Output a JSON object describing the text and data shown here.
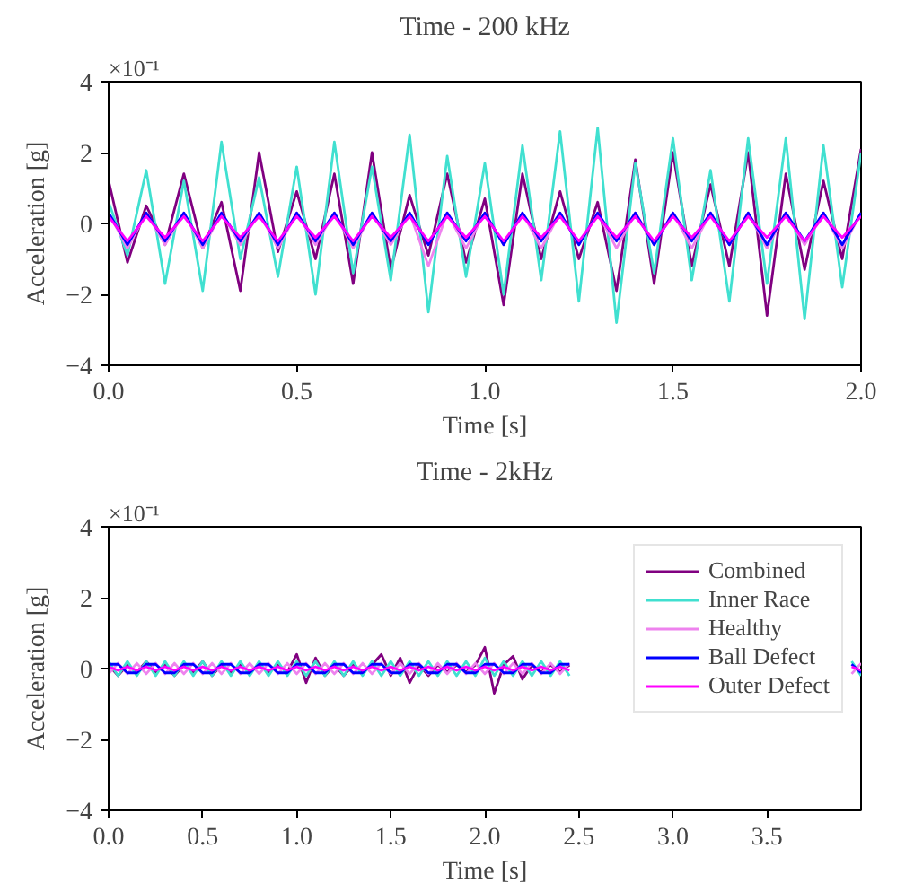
{
  "chart_data": [
    {
      "type": "line",
      "title": "Time - 200 kHz",
      "xlabel": "Time [s]",
      "ylabel": "Acceleration [g]",
      "annotations": [
        "×10⁻¹"
      ],
      "xlim": [
        0,
        2.0
      ],
      "xticks": [
        {
          "value": 0,
          "label": "0.0"
        },
        0.5,
        {
          "value": 1,
          "label": "1.0"
        },
        1.5,
        {
          "value": 2,
          "label": "2.0"
        }
      ],
      "ylim": [
        -4,
        4
      ],
      "yticks": [
        -4,
        -2,
        0,
        2,
        4
      ],
      "grid": false,
      "legend": false,
      "line_style": "solid",
      "x": [
        0.0,
        0.05,
        0.1,
        0.15,
        0.2,
        0.25,
        0.3,
        0.35,
        0.4,
        0.45,
        0.5,
        0.55,
        0.6,
        0.65,
        0.7,
        0.75,
        0.8,
        0.85,
        0.9,
        0.95,
        1.0,
        1.05,
        1.1,
        1.15,
        1.2,
        1.25,
        1.3,
        1.35,
        1.4,
        1.45,
        1.5,
        1.55,
        1.6,
        1.65,
        1.7,
        1.75,
        1.8,
        1.85,
        1.9,
        1.95,
        2.0
      ],
      "series": [
        {
          "color": "#800080",
          "values": [
            1.2,
            -1.1,
            0.5,
            -0.6,
            1.4,
            -0.7,
            0.6,
            -1.9,
            2.0,
            -0.8,
            0.9,
            -1.0,
            1.4,
            -1.7,
            2.0,
            -1.3,
            0.8,
            -0.9,
            1.4,
            -1.1,
            0.7,
            -2.3,
            1.4,
            -1.0,
            0.9,
            -1.0,
            0.6,
            -1.9,
            1.8,
            -1.7,
            2.0,
            -1.2,
            1.1,
            -1.2,
            2.0,
            -2.6,
            1.4,
            -1.3,
            1.2,
            -1.0,
            2.1
          ]
        },
        {
          "color": "#40e0d0",
          "values": [
            0.6,
            -0.9,
            1.5,
            -1.7,
            1.2,
            -1.9,
            2.3,
            -1.0,
            1.3,
            -1.5,
            1.6,
            -2.0,
            2.3,
            -1.4,
            1.6,
            -1.6,
            2.5,
            -2.5,
            1.9,
            -1.5,
            1.7,
            -2.0,
            2.2,
            -1.6,
            2.6,
            -2.2,
            2.7,
            -2.8,
            1.7,
            -1.4,
            2.4,
            -1.6,
            1.5,
            -2.2,
            2.4,
            -1.7,
            2.4,
            -2.7,
            2.2,
            -1.8,
            2.0
          ]
        },
        {
          "color": "#ee82ee",
          "values": [
            0.3,
            -0.7,
            0.3,
            -0.6,
            0.3,
            -0.7,
            0.3,
            -0.6,
            0.3,
            -0.7,
            0.3,
            -0.6,
            0.3,
            -0.7,
            0.3,
            -0.6,
            0.3,
            -1.2,
            0.3,
            -0.7,
            0.3,
            -0.6,
            0.3,
            -0.7,
            0.3,
            -0.6,
            0.3,
            -0.7,
            0.3,
            -0.6,
            0.3,
            -0.7,
            0.3,
            -0.6,
            0.3,
            -0.7,
            0.3,
            -0.6,
            0.3,
            -0.7,
            0.3
          ]
        },
        {
          "color": "#0000ff",
          "values": [
            0.3,
            -0.6,
            0.3,
            -0.5,
            0.3,
            -0.6,
            0.3,
            -0.5,
            0.3,
            -0.6,
            0.3,
            -0.5,
            0.3,
            -0.6,
            0.3,
            -0.5,
            0.3,
            -0.6,
            0.3,
            -0.5,
            0.3,
            -0.6,
            0.3,
            -0.5,
            0.3,
            -0.6,
            0.3,
            -0.5,
            0.3,
            -0.6,
            0.3,
            -0.5,
            0.3,
            -0.6,
            0.3,
            -0.6,
            0.3,
            -0.5,
            0.3,
            -0.6,
            0.3
          ]
        },
        {
          "color": "#ff00ff",
          "values": [
            0.2,
            -0.5,
            0.2,
            -0.4,
            0.2,
            -0.5,
            0.2,
            -0.4,
            0.2,
            -0.5,
            0.2,
            -0.4,
            0.2,
            -0.5,
            0.2,
            -0.4,
            0.2,
            -0.5,
            0.2,
            -0.4,
            0.2,
            -0.5,
            0.2,
            -0.4,
            0.2,
            -0.5,
            0.2,
            -0.4,
            0.2,
            -0.5,
            0.2,
            -0.4,
            0.2,
            -0.5,
            0.2,
            -0.4,
            0.2,
            -0.5,
            0.2,
            -0.4,
            0.2
          ]
        }
      ]
    },
    {
      "type": "line",
      "title": "Time - 2kHz",
      "xlabel": "Time [s]",
      "ylabel": "Acceleration [g]",
      "annotations": [
        "×10⁻¹"
      ],
      "xlim": [
        0,
        4.0
      ],
      "xticks": [
        {
          "value": 0,
          "label": "0.0"
        },
        0.5,
        {
          "value": 1,
          "label": "1.0"
        },
        1.5,
        {
          "value": 2,
          "label": "2.0"
        },
        2.5,
        {
          "value": 3,
          "label": "3.0"
        },
        3.5
      ],
      "ylim": [
        -4,
        4
      ],
      "yticks": [
        -4,
        -2,
        0,
        2,
        4
      ],
      "grid": false,
      "legend": "top right",
      "line_style": "solid",
      "x": [
        0.0,
        0.05,
        0.1,
        0.15,
        0.2,
        0.25,
        0.3,
        0.35,
        0.4,
        0.45,
        0.5,
        0.55,
        0.6,
        0.65,
        0.7,
        0.75,
        0.8,
        0.85,
        0.9,
        0.95,
        1.0,
        1.05,
        1.1,
        1.15,
        1.2,
        1.25,
        1.3,
        1.35,
        1.4,
        1.45,
        1.5,
        1.55,
        1.6,
        1.65,
        1.7,
        1.75,
        1.8,
        1.85,
        1.9,
        1.95,
        2.0,
        2.05,
        2.1,
        2.15,
        2.2,
        2.25,
        2.3,
        2.35,
        2.4,
        2.45,
        2.5,
        3.95,
        4.0
      ],
      "series": [
        {
          "name": "Combined",
          "color": "#800080",
          "values": [
            0.1,
            -0.2,
            0.1,
            -0.1,
            0.2,
            -0.1,
            0.1,
            -0.2,
            0.1,
            -0.1,
            0.2,
            -0.2,
            0.1,
            -0.1,
            0.1,
            -0.1,
            0.1,
            -0.1,
            0.1,
            -0.1,
            0.4,
            -0.4,
            0.3,
            -0.2,
            0.1,
            -0.2,
            0.1,
            -0.1,
            0.1,
            0.4,
            -0.2,
            0.3,
            -0.4,
            0.1,
            -0.2,
            0.1,
            -0.1,
            0.1,
            -0.1,
            0.1,
            0.6,
            -0.7,
            0.1,
            0.35,
            -0.3,
            0.1,
            -0.1,
            0.1,
            -0.1,
            0.1,
            null,
            null,
            null
          ]
        },
        {
          "name": "Inner Race",
          "color": "#40e0d0",
          "values": [
            0.2,
            -0.2,
            0.2,
            -0.2,
            0.2,
            -0.2,
            0.2,
            -0.2,
            0.2,
            -0.2,
            0.2,
            -0.2,
            0.2,
            -0.2,
            0.2,
            -0.2,
            0.2,
            -0.2,
            0.2,
            -0.2,
            0.2,
            -0.2,
            0.2,
            -0.2,
            0.2,
            -0.2,
            0.2,
            -0.2,
            0.2,
            -0.2,
            0.2,
            -0.2,
            0.2,
            -0.2,
            0.2,
            -0.2,
            0.2,
            -0.2,
            0.2,
            -0.2,
            0.3,
            -0.2,
            0.2,
            -0.2,
            0.2,
            -0.2,
            0.2,
            -0.2,
            0.2,
            -0.2,
            null,
            0.2,
            -0.2
          ]
        },
        {
          "name": "Healthy",
          "color": "#ee82ee",
          "values": [
            -0.15,
            0.15,
            -0.15,
            0.15,
            -0.15,
            0.15,
            -0.15,
            0.15,
            -0.15,
            0.15,
            -0.15,
            0.15,
            -0.15,
            0.15,
            -0.15,
            0.15,
            -0.15,
            0.15,
            -0.15,
            0.15,
            -0.15,
            0.15,
            -0.15,
            0.15,
            -0.15,
            0.15,
            -0.15,
            0.15,
            -0.15,
            0.15,
            -0.15,
            0.15,
            -0.15,
            0.15,
            -0.15,
            0.15,
            -0.15,
            0.15,
            -0.15,
            0.15,
            -0.15,
            0.15,
            -0.15,
            0.15,
            -0.15,
            0.15,
            -0.15,
            0.15,
            -0.15,
            0.15,
            null,
            -0.15,
            0.15
          ]
        },
        {
          "name": "Ball Defect",
          "color": "#0000ff",
          "values": [
            0.12,
            0.12,
            -0.12,
            -0.12,
            0.12,
            0.12,
            -0.12,
            -0.12,
            0.12,
            0.12,
            -0.12,
            -0.12,
            0.12,
            0.12,
            -0.12,
            -0.12,
            0.12,
            0.12,
            -0.12,
            -0.12,
            0.12,
            0.12,
            -0.12,
            -0.12,
            0.12,
            0.12,
            -0.12,
            -0.12,
            0.12,
            0.12,
            -0.12,
            -0.12,
            0.12,
            0.12,
            -0.12,
            -0.12,
            0.12,
            0.12,
            -0.12,
            -0.12,
            0.12,
            0.12,
            -0.12,
            -0.12,
            0.12,
            0.12,
            -0.12,
            -0.12,
            0.12,
            0.12,
            null,
            0.12,
            -0.12
          ]
        },
        {
          "name": "Outer Defect",
          "color": "#ff00ff",
          "values": [
            0.05,
            -0.05,
            0.05,
            -0.05,
            0.05,
            -0.05,
            0.05,
            -0.05,
            0.05,
            -0.05,
            0.05,
            -0.05,
            0.05,
            -0.05,
            0.05,
            -0.05,
            0.05,
            -0.05,
            0.05,
            -0.05,
            0.05,
            -0.05,
            0.05,
            -0.05,
            0.05,
            -0.05,
            0.05,
            -0.05,
            0.05,
            -0.05,
            0.05,
            -0.05,
            0.05,
            -0.05,
            0.05,
            -0.05,
            0.05,
            -0.05,
            0.05,
            -0.05,
            0.05,
            -0.05,
            0.05,
            -0.05,
            0.05,
            -0.05,
            0.05,
            -0.05,
            0.05,
            -0.05,
            null,
            0.05,
            -0.05
          ]
        }
      ]
    }
  ]
}
